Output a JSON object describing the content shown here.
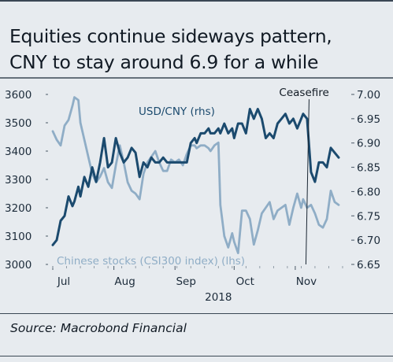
{
  "title_lines": [
    "Equities continue sideways pattern,",
    "CNY to stay around 6.9 for a while"
  ],
  "source": "Source: Macrobond Financial",
  "colors": {
    "background": "#e7ebef",
    "usdcny": "#1b4a6e",
    "csi300": "#8fadc6",
    "text": "#1c2b3a"
  },
  "chart_data": {
    "type": "line",
    "xlabel": "2018",
    "x_ticks": [
      "Jul",
      "Aug",
      "Sep",
      "Oct",
      "Nov"
    ],
    "x_tick_days": [
      0,
      31,
      62,
      92,
      123
    ],
    "x_range_days": [
      -2,
      151
    ],
    "left_axis": {
      "ticks": [
        "3600",
        "3500",
        "3400",
        "3300",
        "3200",
        "3100",
        "3000"
      ],
      "range": [
        3000,
        3600
      ]
    },
    "right_axis": {
      "ticks": [
        "7.00",
        "6.95",
        "6.90",
        "6.85",
        "6.80",
        "6.75",
        "6.70",
        "6.65"
      ],
      "range": [
        6.65,
        7.0
      ]
    },
    "series": [
      {
        "name": "Chinese stocks (CSI300 index) (lhs)",
        "axis": "left",
        "color": "#8fadc6",
        "x": [
          0,
          2,
          4,
          6,
          8,
          10,
          11,
          13,
          14,
          16,
          18,
          20,
          22,
          24,
          26,
          28,
          30,
          32,
          34,
          36,
          38,
          40,
          42,
          44,
          46,
          48,
          50,
          52,
          54,
          56,
          58,
          60,
          62,
          64,
          66,
          68,
          70,
          72,
          73,
          75,
          77,
          79,
          80,
          82,
          84,
          85,
          87,
          89,
          91,
          92,
          94,
          96,
          98,
          100,
          102,
          104,
          106,
          108,
          110,
          112,
          114,
          116,
          118,
          120,
          122,
          124,
          126,
          127,
          129,
          131,
          133,
          135,
          137,
          139,
          141,
          143,
          145
        ],
        "values": [
          3470,
          3440,
          3420,
          3490,
          3510,
          3560,
          3590,
          3580,
          3500,
          3440,
          3380,
          3320,
          3290,
          3310,
          3340,
          3290,
          3270,
          3350,
          3420,
          3360,
          3290,
          3260,
          3250,
          3230,
          3320,
          3360,
          3380,
          3400,
          3360,
          3330,
          3330,
          3370,
          3360,
          3370,
          3350,
          3390,
          3420,
          3420,
          3410,
          3420,
          3420,
          3410,
          3400,
          3420,
          3430,
          3210,
          3100,
          3060,
          3110,
          3080,
          3040,
          3190,
          3190,
          3160,
          3070,
          3120,
          3180,
          3200,
          3220,
          3160,
          3190,
          3200,
          3210,
          3140,
          3200,
          3250,
          3200,
          3230,
          3200,
          3210,
          3180,
          3140,
          3130,
          3160,
          3260,
          3220,
          3210
        ],
        "label": "Chinese stocks (CSI300 index) (lhs)"
      },
      {
        "name": "USD/CNY (rhs)",
        "axis": "right",
        "color": "#1b4a6e",
        "x": [
          0,
          2,
          4,
          6,
          8,
          10,
          11,
          13,
          14,
          16,
          18,
          20,
          22,
          24,
          26,
          28,
          30,
          32,
          34,
          36,
          38,
          40,
          42,
          44,
          46,
          48,
          50,
          52,
          54,
          56,
          58,
          60,
          62,
          64,
          66,
          68,
          70,
          72,
          73,
          75,
          77,
          79,
          80,
          82,
          84,
          85,
          87,
          89,
          91,
          92,
          94,
          96,
          98,
          100,
          102,
          104,
          106,
          108,
          110,
          112,
          114,
          116,
          118,
          120,
          122,
          124,
          126,
          127,
          129,
          131,
          133,
          135,
          137,
          139,
          141,
          143,
          145
        ],
        "values": [
          6.69,
          6.7,
          6.74,
          6.75,
          6.79,
          6.77,
          6.78,
          6.81,
          6.79,
          6.83,
          6.81,
          6.85,
          6.82,
          6.86,
          6.91,
          6.85,
          6.86,
          6.91,
          6.88,
          6.86,
          6.87,
          6.89,
          6.88,
          6.83,
          6.86,
          6.85,
          6.87,
          6.86,
          6.86,
          6.87,
          6.86,
          6.86,
          6.86,
          6.86,
          6.86,
          6.86,
          6.9,
          6.91,
          6.9,
          6.92,
          6.92,
          6.93,
          6.92,
          6.92,
          6.93,
          6.92,
          6.94,
          6.92,
          6.93,
          6.91,
          6.94,
          6.94,
          6.92,
          6.97,
          6.95,
          6.97,
          6.95,
          6.91,
          6.92,
          6.91,
          6.94,
          6.95,
          6.96,
          6.94,
          6.95,
          6.93,
          6.95,
          6.96,
          6.95,
          6.84,
          6.82,
          6.86,
          6.86,
          6.85,
          6.89,
          6.88,
          6.87
        ],
        "label": "USD/CNY (rhs)"
      }
    ],
    "annotations": [
      {
        "text": "Ceasefire",
        "x_day": 130,
        "y_top": 6.99,
        "y_bottom": 6.65
      }
    ]
  }
}
